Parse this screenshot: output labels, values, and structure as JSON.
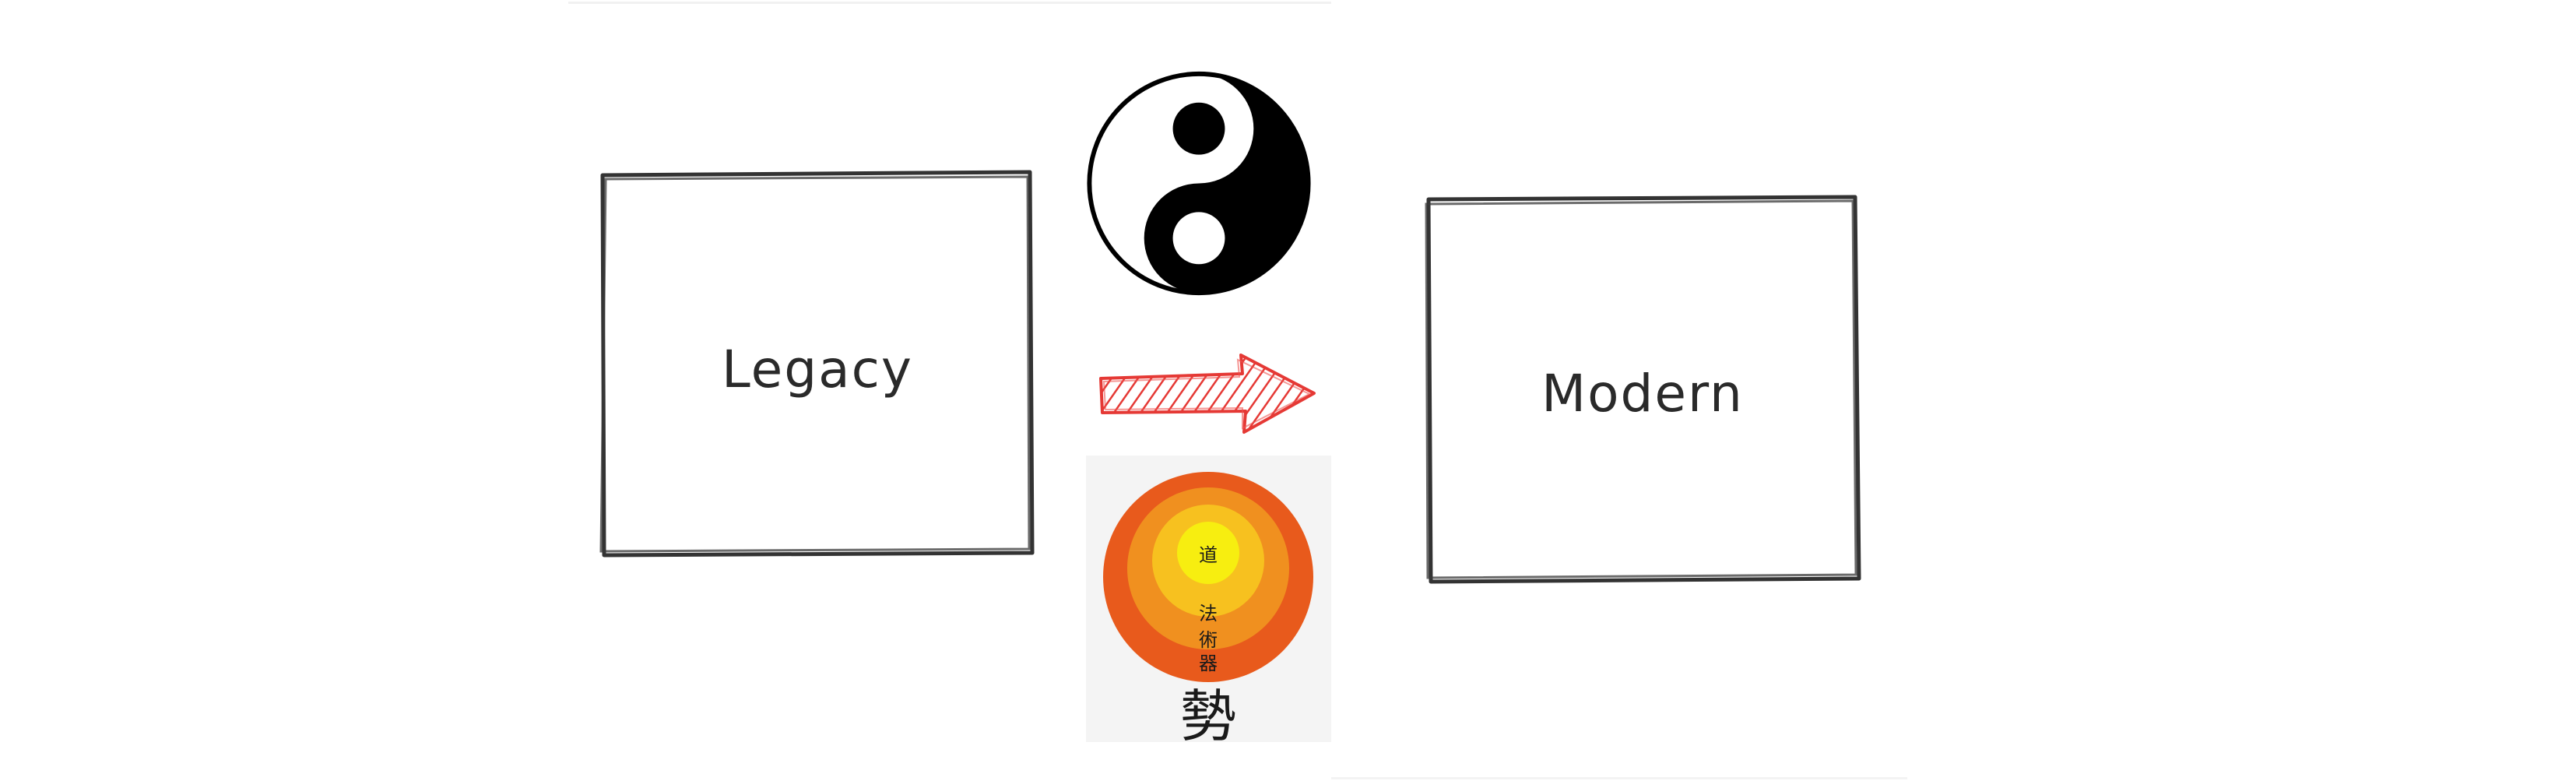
{
  "diagram": {
    "left_box": {
      "label": "Legacy"
    },
    "right_box": {
      "label": "Modern"
    },
    "arrow": {
      "color": "#e53935",
      "direction": "left-to-right"
    },
    "yin_yang": {
      "icon": "yin-yang-icon"
    },
    "circles": {
      "colors": [
        "#e85a1c",
        "#f0901f",
        "#f7c11f",
        "#f7ee10"
      ],
      "rings": [
        "道",
        "法",
        "術",
        "器"
      ],
      "caption": "勢"
    }
  }
}
